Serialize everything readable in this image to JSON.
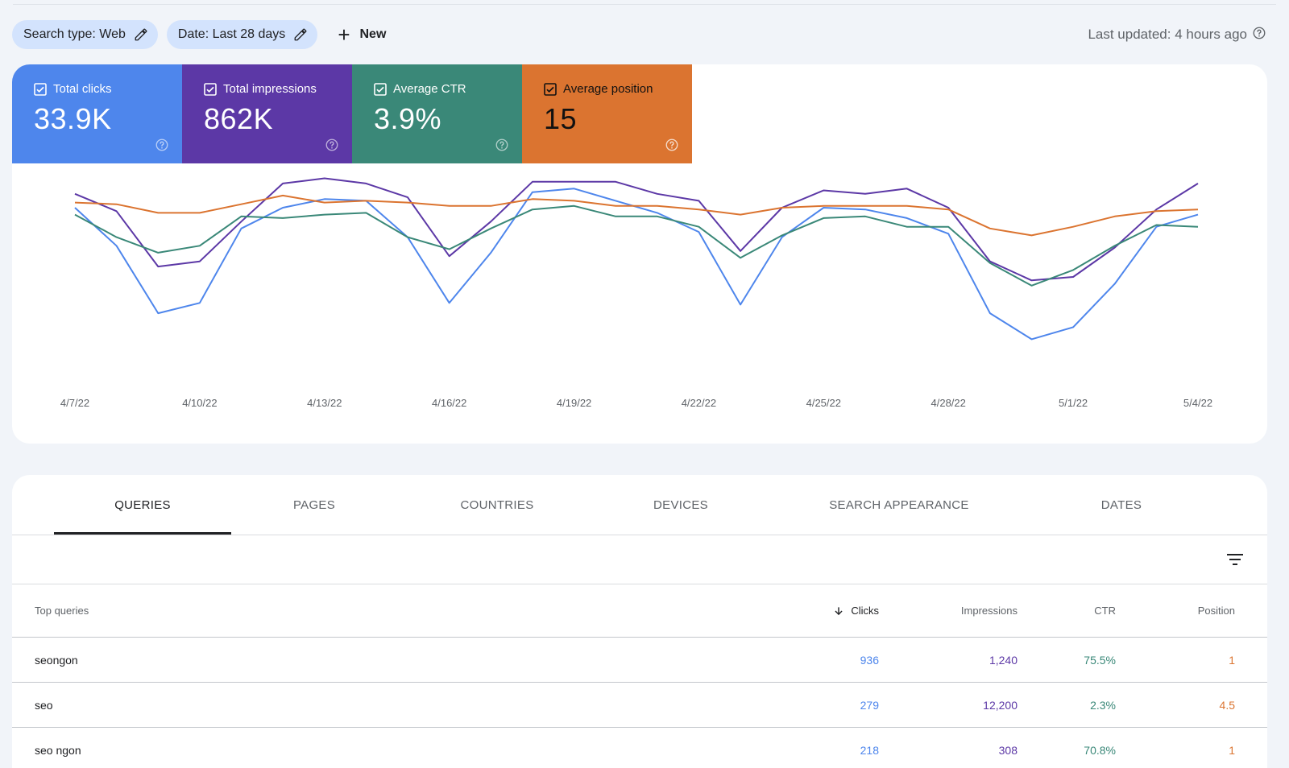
{
  "toolbar": {
    "search_type_chip": "Search type: Web",
    "date_chip": "Date: Last 28 days",
    "new_label": "New",
    "last_updated": "Last updated: 4 hours ago"
  },
  "metrics": {
    "clicks": {
      "label": "Total clicks",
      "value": "33.9K",
      "checked": true,
      "color": "#4e86ec"
    },
    "impressions": {
      "label": "Total impressions",
      "value": "862K",
      "checked": true,
      "color": "#5c38a6"
    },
    "ctr": {
      "label": "Average CTR",
      "value": "3.9%",
      "checked": true,
      "color": "#3a8878"
    },
    "position": {
      "label": "Average position",
      "value": "15",
      "checked": true,
      "color": "#db7430"
    }
  },
  "chart_data": {
    "type": "line",
    "x": [
      "4/7/22",
      "4/8/22",
      "4/9/22",
      "4/10/22",
      "4/11/22",
      "4/12/22",
      "4/13/22",
      "4/14/22",
      "4/15/22",
      "4/16/22",
      "4/17/22",
      "4/18/22",
      "4/19/22",
      "4/20/22",
      "4/21/22",
      "4/22/22",
      "4/23/22",
      "4/24/22",
      "4/25/22",
      "4/26/22",
      "4/27/22",
      "4/28/22",
      "4/29/22",
      "4/30/22",
      "5/1/22",
      "5/2/22",
      "5/3/22",
      "5/4/22"
    ],
    "x_tick_labels": [
      "4/7/22",
      "4/10/22",
      "4/13/22",
      "4/16/22",
      "4/19/22",
      "4/22/22",
      "4/25/22",
      "4/28/22",
      "5/1/22",
      "5/4/22"
    ],
    "grid": false,
    "axes_values_hidden": true,
    "series": [
      {
        "key": "impressions",
        "color": "#5c38a6",
        "values": [
          0.88,
          0.78,
          0.46,
          0.49,
          0.72,
          0.94,
          0.97,
          0.94,
          0.86,
          0.52,
          0.72,
          0.95,
          0.95,
          0.95,
          0.88,
          0.84,
          0.55,
          0.8,
          0.9,
          0.88,
          0.91,
          0.8,
          0.49,
          0.38,
          0.4,
          0.57,
          0.79,
          0.94
        ]
      },
      {
        "key": "clicks",
        "color": "#4e86ec",
        "values": [
          0.8,
          0.58,
          0.19,
          0.25,
          0.68,
          0.8,
          0.85,
          0.84,
          0.63,
          0.25,
          0.54,
          0.89,
          0.91,
          0.84,
          0.77,
          0.66,
          0.24,
          0.63,
          0.8,
          0.79,
          0.74,
          0.65,
          0.19,
          0.04,
          0.11,
          0.36,
          0.69,
          0.76
        ]
      },
      {
        "key": "ctr",
        "color": "#3a8878",
        "values": [
          0.76,
          0.63,
          0.54,
          0.58,
          0.75,
          0.74,
          0.76,
          0.77,
          0.63,
          0.56,
          0.68,
          0.79,
          0.81,
          0.75,
          0.75,
          0.69,
          0.51,
          0.64,
          0.74,
          0.75,
          0.69,
          0.69,
          0.48,
          0.35,
          0.44,
          0.58,
          0.7,
          0.69
        ]
      },
      {
        "key": "position",
        "color": "#db7430",
        "values": [
          0.83,
          0.82,
          0.77,
          0.77,
          0.82,
          0.87,
          0.83,
          0.84,
          0.83,
          0.81,
          0.81,
          0.85,
          0.84,
          0.81,
          0.81,
          0.79,
          0.76,
          0.8,
          0.81,
          0.81,
          0.81,
          0.79,
          0.68,
          0.64,
          0.69,
          0.75,
          0.78,
          0.79
        ]
      }
    ]
  },
  "tabs": [
    "QUERIES",
    "PAGES",
    "COUNTRIES",
    "DEVICES",
    "SEARCH APPEARANCE",
    "DATES"
  ],
  "table": {
    "headers": {
      "query": "Top queries",
      "clicks": "Clicks",
      "impressions": "Impressions",
      "ctr": "CTR",
      "position": "Position"
    },
    "sorted_by": "Clicks",
    "rows": [
      {
        "query": "seongon",
        "clicks": "936",
        "impressions": "1,240",
        "ctr": "75.5%",
        "position": "1"
      },
      {
        "query": "seo",
        "clicks": "279",
        "impressions": "12,200",
        "ctr": "2.3%",
        "position": "4.5"
      },
      {
        "query": "seo ngon",
        "clicks": "218",
        "impressions": "308",
        "ctr": "70.8%",
        "position": "1"
      }
    ]
  },
  "icons": {
    "edit": "pencil-icon",
    "add": "plus-icon",
    "help": "help-circle-icon",
    "checkbox": "checkbox-checked-icon",
    "filter": "filter-icon",
    "sort": "arrow-down-icon"
  }
}
